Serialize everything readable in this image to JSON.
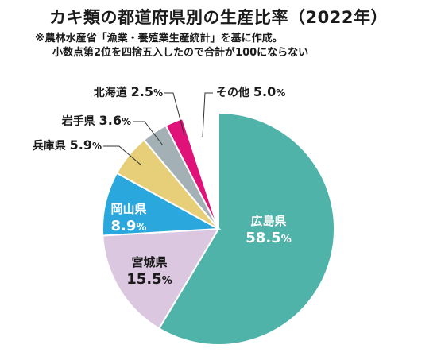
{
  "chart_data": {
    "type": "pie",
    "title": "カキ類の都道府県別の生産比率（2022年）",
    "notes": [
      "※農林水産省「漁業・養殖業生産統計」を基に作成。",
      "小数点第2位を四捨五入したので合計が100にならない"
    ],
    "unit": "%",
    "slices": [
      {
        "label": "広島県",
        "value": 58.5,
        "color": "#4fb3aa",
        "text_color": "#ffffff"
      },
      {
        "label": "宮城県",
        "value": 15.5,
        "color": "#dcc7e0",
        "text_color": "#1a1a1a"
      },
      {
        "label": "岡山県",
        "value": 8.9,
        "color": "#2aa7dc",
        "text_color": "#ffffff"
      },
      {
        "label": "兵庫県",
        "value": 5.9,
        "color": "#e6cf78",
        "text_color": "#1a1a1a"
      },
      {
        "label": "岩手県",
        "value": 3.6,
        "color": "#a3b0b6",
        "text_color": "#1a1a1a"
      },
      {
        "label": "北海道",
        "value": 2.5,
        "color": "#e0127a",
        "text_color": "#1a1a1a"
      },
      {
        "label": "その他",
        "value": 5.0,
        "color": "#ffffff",
        "text_color": "#1a1a1a"
      }
    ]
  }
}
